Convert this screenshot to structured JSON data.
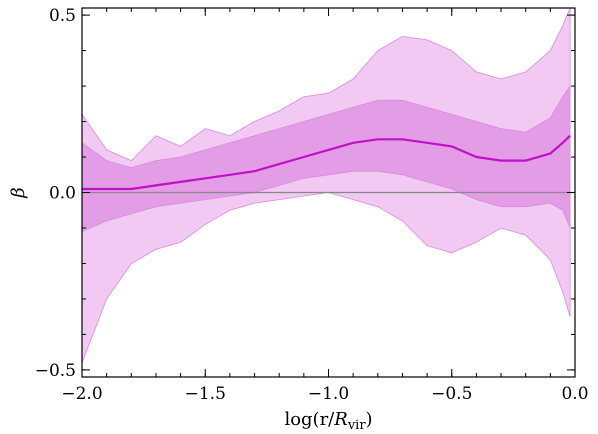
{
  "chart_data": {
    "type": "area",
    "xlabel": "log(r/R_vir)",
    "ylabel": "β",
    "xlim": [
      -2.0,
      0.0
    ],
    "ylim": [
      -0.52,
      0.52
    ],
    "xticks": [
      -2.0,
      -1.5,
      -1.0,
      -0.5,
      0.0
    ],
    "xtick_labels": [
      "−2.0",
      "−1.5",
      "−1.0",
      "−0.5",
      "0.0"
    ],
    "yticks": [
      -0.5,
      0.0,
      0.5
    ],
    "ytick_labels": [
      "−0.5",
      "0.0",
      "0.5"
    ],
    "reference_line": 0.0,
    "colors": {
      "median": "#c010c8",
      "inner_band": "#e39ce6",
      "outer_band": "#f1c9f2",
      "band_edge": "#d98add",
      "reference": "#888888"
    },
    "x": [
      -2.0,
      -1.9,
      -1.8,
      -1.7,
      -1.6,
      -1.5,
      -1.4,
      -1.3,
      -1.2,
      -1.1,
      -1.0,
      -0.9,
      -0.8,
      -0.7,
      -0.6,
      -0.5,
      -0.4,
      -0.3,
      -0.2,
      -0.1,
      -0.05,
      -0.02
    ],
    "median": [
      0.01,
      0.01,
      0.01,
      0.02,
      0.03,
      0.04,
      0.05,
      0.06,
      0.08,
      0.1,
      0.12,
      0.14,
      0.15,
      0.15,
      0.14,
      0.13,
      0.1,
      0.09,
      0.09,
      0.11,
      0.14,
      0.16
    ],
    "inner_upper": [
      0.14,
      0.09,
      0.07,
      0.09,
      0.1,
      0.12,
      0.14,
      0.16,
      0.18,
      0.2,
      0.22,
      0.24,
      0.26,
      0.26,
      0.24,
      0.22,
      0.2,
      0.18,
      0.17,
      0.21,
      0.27,
      0.3
    ],
    "inner_lower": [
      -0.11,
      -0.08,
      -0.06,
      -0.04,
      -0.03,
      -0.02,
      -0.01,
      0.0,
      0.02,
      0.04,
      0.05,
      0.06,
      0.06,
      0.05,
      0.03,
      0.01,
      -0.02,
      -0.04,
      -0.04,
      -0.03,
      -0.05,
      -0.1
    ],
    "outer_upper": [
      0.22,
      0.12,
      0.09,
      0.16,
      0.13,
      0.18,
      0.16,
      0.2,
      0.23,
      0.27,
      0.28,
      0.32,
      0.4,
      0.44,
      0.43,
      0.4,
      0.34,
      0.32,
      0.34,
      0.4,
      0.47,
      0.52
    ],
    "outer_lower": [
      -0.48,
      -0.3,
      -0.2,
      -0.16,
      -0.14,
      -0.09,
      -0.05,
      -0.03,
      -0.02,
      -0.01,
      0.0,
      -0.02,
      -0.04,
      -0.08,
      -0.15,
      -0.17,
      -0.14,
      -0.1,
      -0.12,
      -0.19,
      -0.28,
      -0.35
    ]
  }
}
